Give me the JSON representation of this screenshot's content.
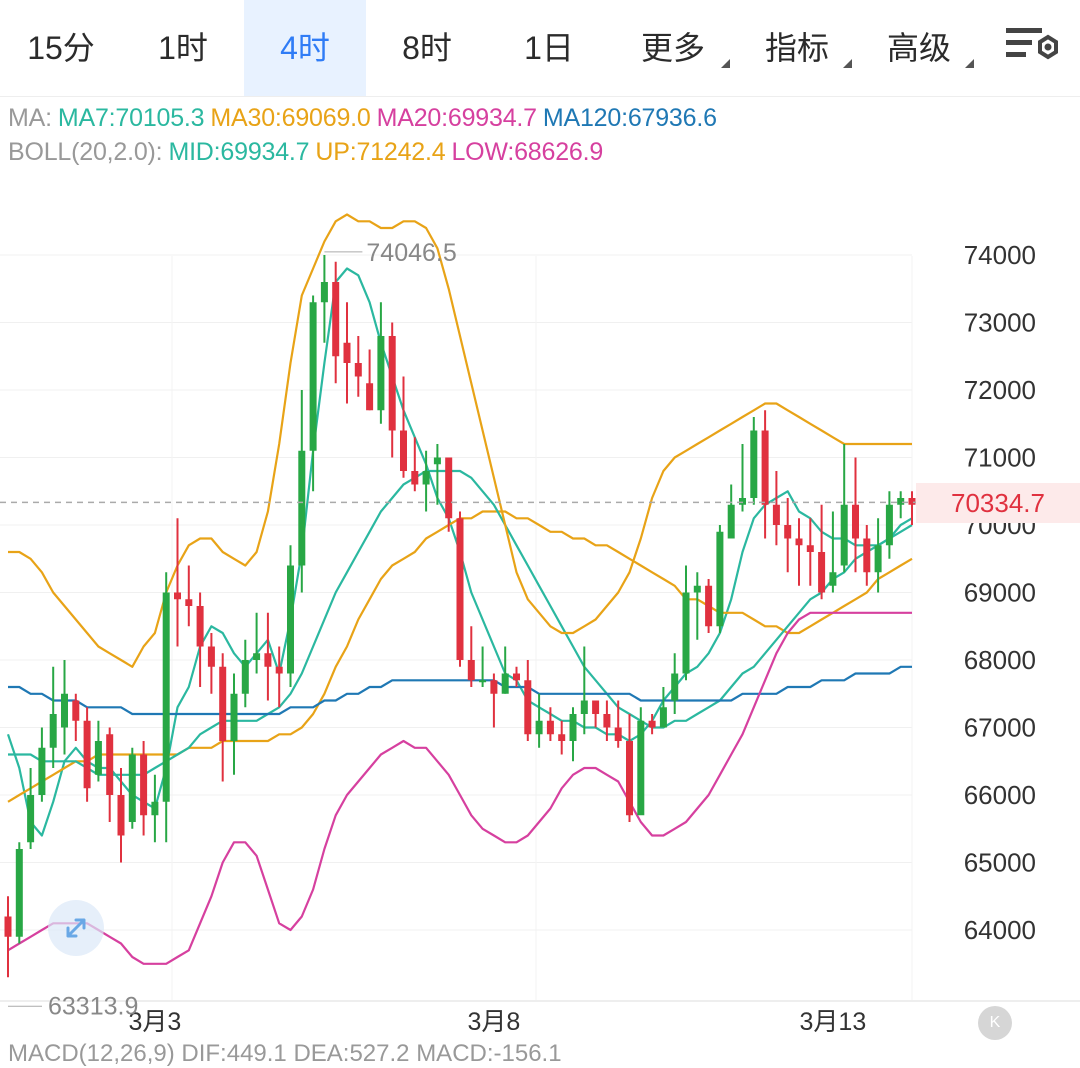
{
  "tabs": [
    {
      "label": "15分",
      "active": false,
      "dropdown": false
    },
    {
      "label": "1时",
      "active": false,
      "dropdown": false
    },
    {
      "label": "4时",
      "active": true,
      "dropdown": false
    },
    {
      "label": "8时",
      "active": false,
      "dropdown": false
    },
    {
      "label": "1日",
      "active": false,
      "dropdown": false
    },
    {
      "label": "更多",
      "active": false,
      "dropdown": true
    },
    {
      "label": "指标",
      "active": false,
      "dropdown": true
    },
    {
      "label": "高级",
      "active": false,
      "dropdown": true
    }
  ],
  "settings_icon": "chart-settings-icon",
  "ma": {
    "prefix": "MA:",
    "items": [
      {
        "label": "MA7:70105.3",
        "color": "#2bb8a0"
      },
      {
        "label": "MA30:69069.0",
        "color": "#e8a317"
      },
      {
        "label": "MA20:69934.7",
        "color": "#d6409f"
      },
      {
        "label": "MA120:67936.6",
        "color": "#1f78b4"
      }
    ]
  },
  "boll": {
    "prefix": "BOLL(20,2.0):",
    "items": [
      {
        "label": "MID:69934.7",
        "color": "#2bb8a0"
      },
      {
        "label": "UP:71242.4",
        "color": "#e8a317"
      },
      {
        "label": "LOW:68626.9",
        "color": "#d6409f"
      }
    ]
  },
  "current_price": "70334.7",
  "expand_icon": "expand-arrows-icon",
  "reset_icon": "collapse-left-icon",
  "reset_label": "K",
  "macd_label": "MACD(12,26,9) DIF:449.1 DEA:527.2 MACD:-156.1",
  "colors": {
    "up": "#28a745",
    "down": "#e0313f",
    "grid": "#eeeeee"
  },
  "chart_data": {
    "type": "candlestick",
    "y_ticks": [
      "74000",
      "73000",
      "72000",
      "71000",
      "70000",
      "69000",
      "68000",
      "67000",
      "66000",
      "65000",
      "64000"
    ],
    "ylim": [
      63200,
      75200
    ],
    "x_ticks": [
      {
        "label": "3月3",
        "index": 13
      },
      {
        "label": "3月8",
        "index": 43
      },
      {
        "label": "3月13",
        "index": 73
      }
    ],
    "high_label": "74046.5",
    "low_label": "63313.9",
    "candles": [
      [
        64200,
        63900,
        63300,
        64500
      ],
      [
        63900,
        65200,
        63800,
        65300
      ],
      [
        65300,
        66000,
        65200,
        66400
      ],
      [
        66000,
        66700,
        65900,
        67000
      ],
      [
        66700,
        67200,
        66400,
        67900
      ],
      [
        67000,
        67500,
        66600,
        68000
      ],
      [
        67400,
        67100,
        66800,
        67500
      ],
      [
        67100,
        66100,
        65900,
        67300
      ],
      [
        66300,
        66800,
        66200,
        67100
      ],
      [
        66900,
        66000,
        65600,
        67000
      ],
      [
        66000,
        65400,
        65000,
        66400
      ],
      [
        65600,
        66600,
        65500,
        66700
      ],
      [
        66600,
        65700,
        65400,
        66800
      ],
      [
        65700,
        65900,
        65300,
        66300
      ],
      [
        65900,
        69000,
        65300,
        69300
      ],
      [
        69000,
        68900,
        68200,
        70100
      ],
      [
        68900,
        68800,
        68500,
        69400
      ],
      [
        68800,
        68200,
        67600,
        69000
      ],
      [
        68200,
        67900,
        67500,
        68400
      ],
      [
        67900,
        66800,
        66200,
        68100
      ],
      [
        66800,
        67500,
        66300,
        67800
      ],
      [
        67500,
        68000,
        67300,
        68300
      ],
      [
        68000,
        68100,
        67800,
        68700
      ],
      [
        68100,
        67900,
        67400,
        68700
      ],
      [
        67900,
        67800,
        67300,
        68200
      ],
      [
        67800,
        69400,
        67600,
        69700
      ],
      [
        69400,
        71100,
        69000,
        72000
      ],
      [
        71100,
        73300,
        70500,
        73400
      ],
      [
        73300,
        73600,
        72700,
        74000
      ],
      [
        73600,
        72500,
        72100,
        73900
      ],
      [
        72700,
        72400,
        71800,
        73300
      ],
      [
        72400,
        72200,
        71900,
        72800
      ],
      [
        72100,
        71700,
        71700,
        72600
      ],
      [
        71700,
        72800,
        71500,
        73300
      ],
      [
        72800,
        71400,
        71000,
        73000
      ],
      [
        71400,
        70800,
        70700,
        72200
      ],
      [
        70800,
        70600,
        70500,
        71300
      ],
      [
        70600,
        70800,
        70200,
        71100
      ],
      [
        70900,
        71000,
        70300,
        71200
      ],
      [
        71000,
        70100,
        69900,
        71000
      ],
      [
        70100,
        68000,
        67900,
        70200
      ],
      [
        68000,
        67700,
        67600,
        68500
      ],
      [
        67700,
        67700,
        67600,
        68200
      ],
      [
        67700,
        67500,
        67000,
        67800
      ],
      [
        67500,
        67800,
        67500,
        68200
      ],
      [
        67800,
        67700,
        67600,
        67900
      ],
      [
        67700,
        66900,
        66800,
        68000
      ],
      [
        66900,
        67100,
        66700,
        67500
      ],
      [
        67100,
        66900,
        66800,
        67300
      ],
      [
        66900,
        66800,
        66600,
        67100
      ],
      [
        66800,
        67200,
        66500,
        67300
      ],
      [
        67200,
        67400,
        66900,
        68200
      ],
      [
        67400,
        67200,
        67000,
        67400
      ],
      [
        67200,
        67000,
        66800,
        67400
      ],
      [
        67000,
        66800,
        66700,
        67400
      ],
      [
        66800,
        65700,
        65600,
        67200
      ],
      [
        65700,
        67100,
        65800,
        67300
      ],
      [
        67100,
        67000,
        66900,
        67200
      ],
      [
        67000,
        67300,
        67000,
        67600
      ],
      [
        67400,
        67800,
        67200,
        68100
      ],
      [
        67800,
        69000,
        67700,
        69400
      ],
      [
        69000,
        69100,
        68300,
        69300
      ],
      [
        69100,
        68500,
        68400,
        69200
      ],
      [
        68500,
        69900,
        68400,
        70000
      ],
      [
        69800,
        70300,
        69800,
        70600
      ],
      [
        70300,
        70400,
        70200,
        71200
      ],
      [
        70400,
        71400,
        70300,
        71600
      ],
      [
        71400,
        70300,
        69800,
        71700
      ],
      [
        70300,
        70000,
        69700,
        70800
      ],
      [
        70000,
        69800,
        69300,
        70400
      ],
      [
        69800,
        69700,
        69100,
        70100
      ],
      [
        69700,
        69600,
        69100,
        70100
      ],
      [
        69600,
        69000,
        68900,
        70300
      ],
      [
        69100,
        69300,
        69000,
        70200
      ],
      [
        69400,
        70300,
        69300,
        71200
      ],
      [
        70300,
        69800,
        69300,
        71000
      ],
      [
        69800,
        69300,
        69100,
        70000
      ],
      [
        69300,
        69700,
        69000,
        70100
      ],
      [
        69700,
        70300,
        69500,
        70500
      ],
      [
        70300,
        70400,
        70100,
        70500
      ],
      [
        70400,
        70300,
        70000,
        70500
      ]
    ],
    "series": [
      {
        "name": "MA7",
        "color": "#2bb8a0",
        "values": [
          66900,
          66400,
          65600,
          65400,
          65900,
          66500,
          66700,
          66500,
          66400,
          66400,
          66200,
          66000,
          65900,
          65800,
          66400,
          67300,
          67600,
          68200,
          68500,
          68400,
          68100,
          67900,
          68100,
          68300,
          67800,
          68600,
          69600,
          71100,
          72400,
          73600,
          73800,
          73700,
          73300,
          72700,
          72200,
          71700,
          71300,
          70900,
          70400,
          70100,
          69600,
          69000,
          68600,
          68200,
          67800,
          67700,
          67400,
          67300,
          67200,
          67100,
          67100,
          67000,
          67000,
          66900,
          66900,
          66800,
          66900,
          67100,
          67400,
          67600,
          67800,
          67900,
          68100,
          68400,
          68900,
          69600,
          70100,
          70300,
          70400,
          70500,
          70200,
          70100,
          69900,
          69800,
          69800,
          69700,
          69700,
          69700,
          69800,
          70000,
          70100
        ]
      },
      {
        "name": "MA30",
        "color": "#e8a317",
        "values": [
          65900,
          66000,
          66100,
          66200,
          66300,
          66400,
          66500,
          66500,
          66600,
          66600,
          66600,
          66600,
          66600,
          66600,
          66600,
          66600,
          66700,
          66700,
          66700,
          66800,
          66800,
          66800,
          66800,
          66800,
          66900,
          66900,
          67000,
          67200,
          67500,
          67900,
          68200,
          68600,
          68900,
          69200,
          69400,
          69500,
          69600,
          69800,
          69900,
          70000,
          70100,
          70100,
          70200,
          70200,
          70200,
          70100,
          70100,
          70000,
          69900,
          69900,
          69800,
          69800,
          69700,
          69700,
          69600,
          69500,
          69400,
          69300,
          69200,
          69100,
          68900,
          68900,
          68800,
          68700,
          68700,
          68700,
          68600,
          68500,
          68500,
          68400,
          68400,
          68500,
          68600,
          68700,
          68800,
          68900,
          69000,
          69200,
          69300,
          69400,
          69500
        ]
      },
      {
        "name": "MA20",
        "color": "#2bb8a0",
        "values": [
          66600,
          66600,
          66600,
          66500,
          66500,
          66500,
          66500,
          66400,
          66300,
          66300,
          66300,
          66300,
          66300,
          66400,
          66500,
          66600,
          66700,
          66900,
          67000,
          67100,
          67100,
          67100,
          67100,
          67200,
          67300,
          67500,
          67800,
          68200,
          68600,
          69000,
          69300,
          69600,
          69900,
          70200,
          70400,
          70600,
          70700,
          70800,
          70800,
          70800,
          70800,
          70700,
          70500,
          70300,
          70000,
          69700,
          69400,
          69100,
          68800,
          68500,
          68200,
          67900,
          67700,
          67500,
          67300,
          67200,
          67100,
          67000,
          67000,
          67100,
          67100,
          67200,
          67300,
          67400,
          67600,
          67800,
          67900,
          68100,
          68300,
          68500,
          68700,
          68900,
          69000,
          69200,
          69300,
          69500,
          69600,
          69700,
          69800,
          69900,
          70000
        ]
      },
      {
        "name": "MA120",
        "color": "#1f78b4",
        "values": [
          67600,
          67600,
          67500,
          67500,
          67400,
          67400,
          67400,
          67300,
          67300,
          67300,
          67300,
          67200,
          67200,
          67200,
          67200,
          67200,
          67200,
          67200,
          67200,
          67200,
          67200,
          67200,
          67200,
          67200,
          67200,
          67300,
          67300,
          67300,
          67400,
          67400,
          67500,
          67500,
          67600,
          67600,
          67700,
          67700,
          67700,
          67700,
          67700,
          67700,
          67700,
          67700,
          67700,
          67700,
          67600,
          67600,
          67600,
          67500,
          67500,
          67500,
          67500,
          67500,
          67500,
          67500,
          67500,
          67500,
          67400,
          67400,
          67400,
          67400,
          67400,
          67400,
          67400,
          67400,
          67400,
          67500,
          67500,
          67500,
          67500,
          67600,
          67600,
          67600,
          67700,
          67700,
          67700,
          67800,
          67800,
          67800,
          67800,
          67900,
          67900
        ]
      },
      {
        "name": "UP",
        "color": "#e8a317",
        "values": [
          69600,
          69600,
          69500,
          69300,
          69000,
          68800,
          68600,
          68400,
          68200,
          68100,
          68000,
          67900,
          68200,
          68400,
          69000,
          69400,
          69700,
          69800,
          69800,
          69600,
          69500,
          69400,
          69600,
          70200,
          71200,
          72400,
          73400,
          73800,
          74200,
          74500,
          74600,
          74500,
          74500,
          74400,
          74400,
          74500,
          74500,
          74400,
          74100,
          73500,
          72800,
          72100,
          71400,
          70700,
          70000,
          69300,
          68900,
          68700,
          68500,
          68400,
          68400,
          68500,
          68600,
          68800,
          69000,
          69300,
          69800,
          70400,
          70800,
          71000,
          71100,
          71200,
          71300,
          71400,
          71500,
          71600,
          71700,
          71800,
          71800,
          71700,
          71600,
          71500,
          71400,
          71300,
          71200,
          71200,
          71200,
          71200,
          71200,
          71200,
          71200
        ]
      },
      {
        "name": "LOW",
        "color": "#d6409f",
        "values": [
          63700,
          63800,
          63900,
          64000,
          64100,
          64100,
          64100,
          64100,
          64000,
          63900,
          63800,
          63600,
          63500,
          63500,
          63500,
          63600,
          63700,
          64100,
          64500,
          65000,
          65300,
          65300,
          65100,
          64600,
          64100,
          64000,
          64200,
          64600,
          65200,
          65700,
          66000,
          66200,
          66400,
          66600,
          66700,
          66800,
          66700,
          66700,
          66500,
          66300,
          66000,
          65700,
          65500,
          65400,
          65300,
          65300,
          65400,
          65600,
          65800,
          66100,
          66300,
          66400,
          66400,
          66300,
          66200,
          65900,
          65600,
          65400,
          65400,
          65500,
          65600,
          65800,
          66000,
          66300,
          66600,
          66900,
          67300,
          67700,
          68100,
          68400,
          68600,
          68700,
          68700,
          68700,
          68700,
          68700,
          68700,
          68700,
          68700,
          68700,
          68700
        ]
      }
    ]
  }
}
